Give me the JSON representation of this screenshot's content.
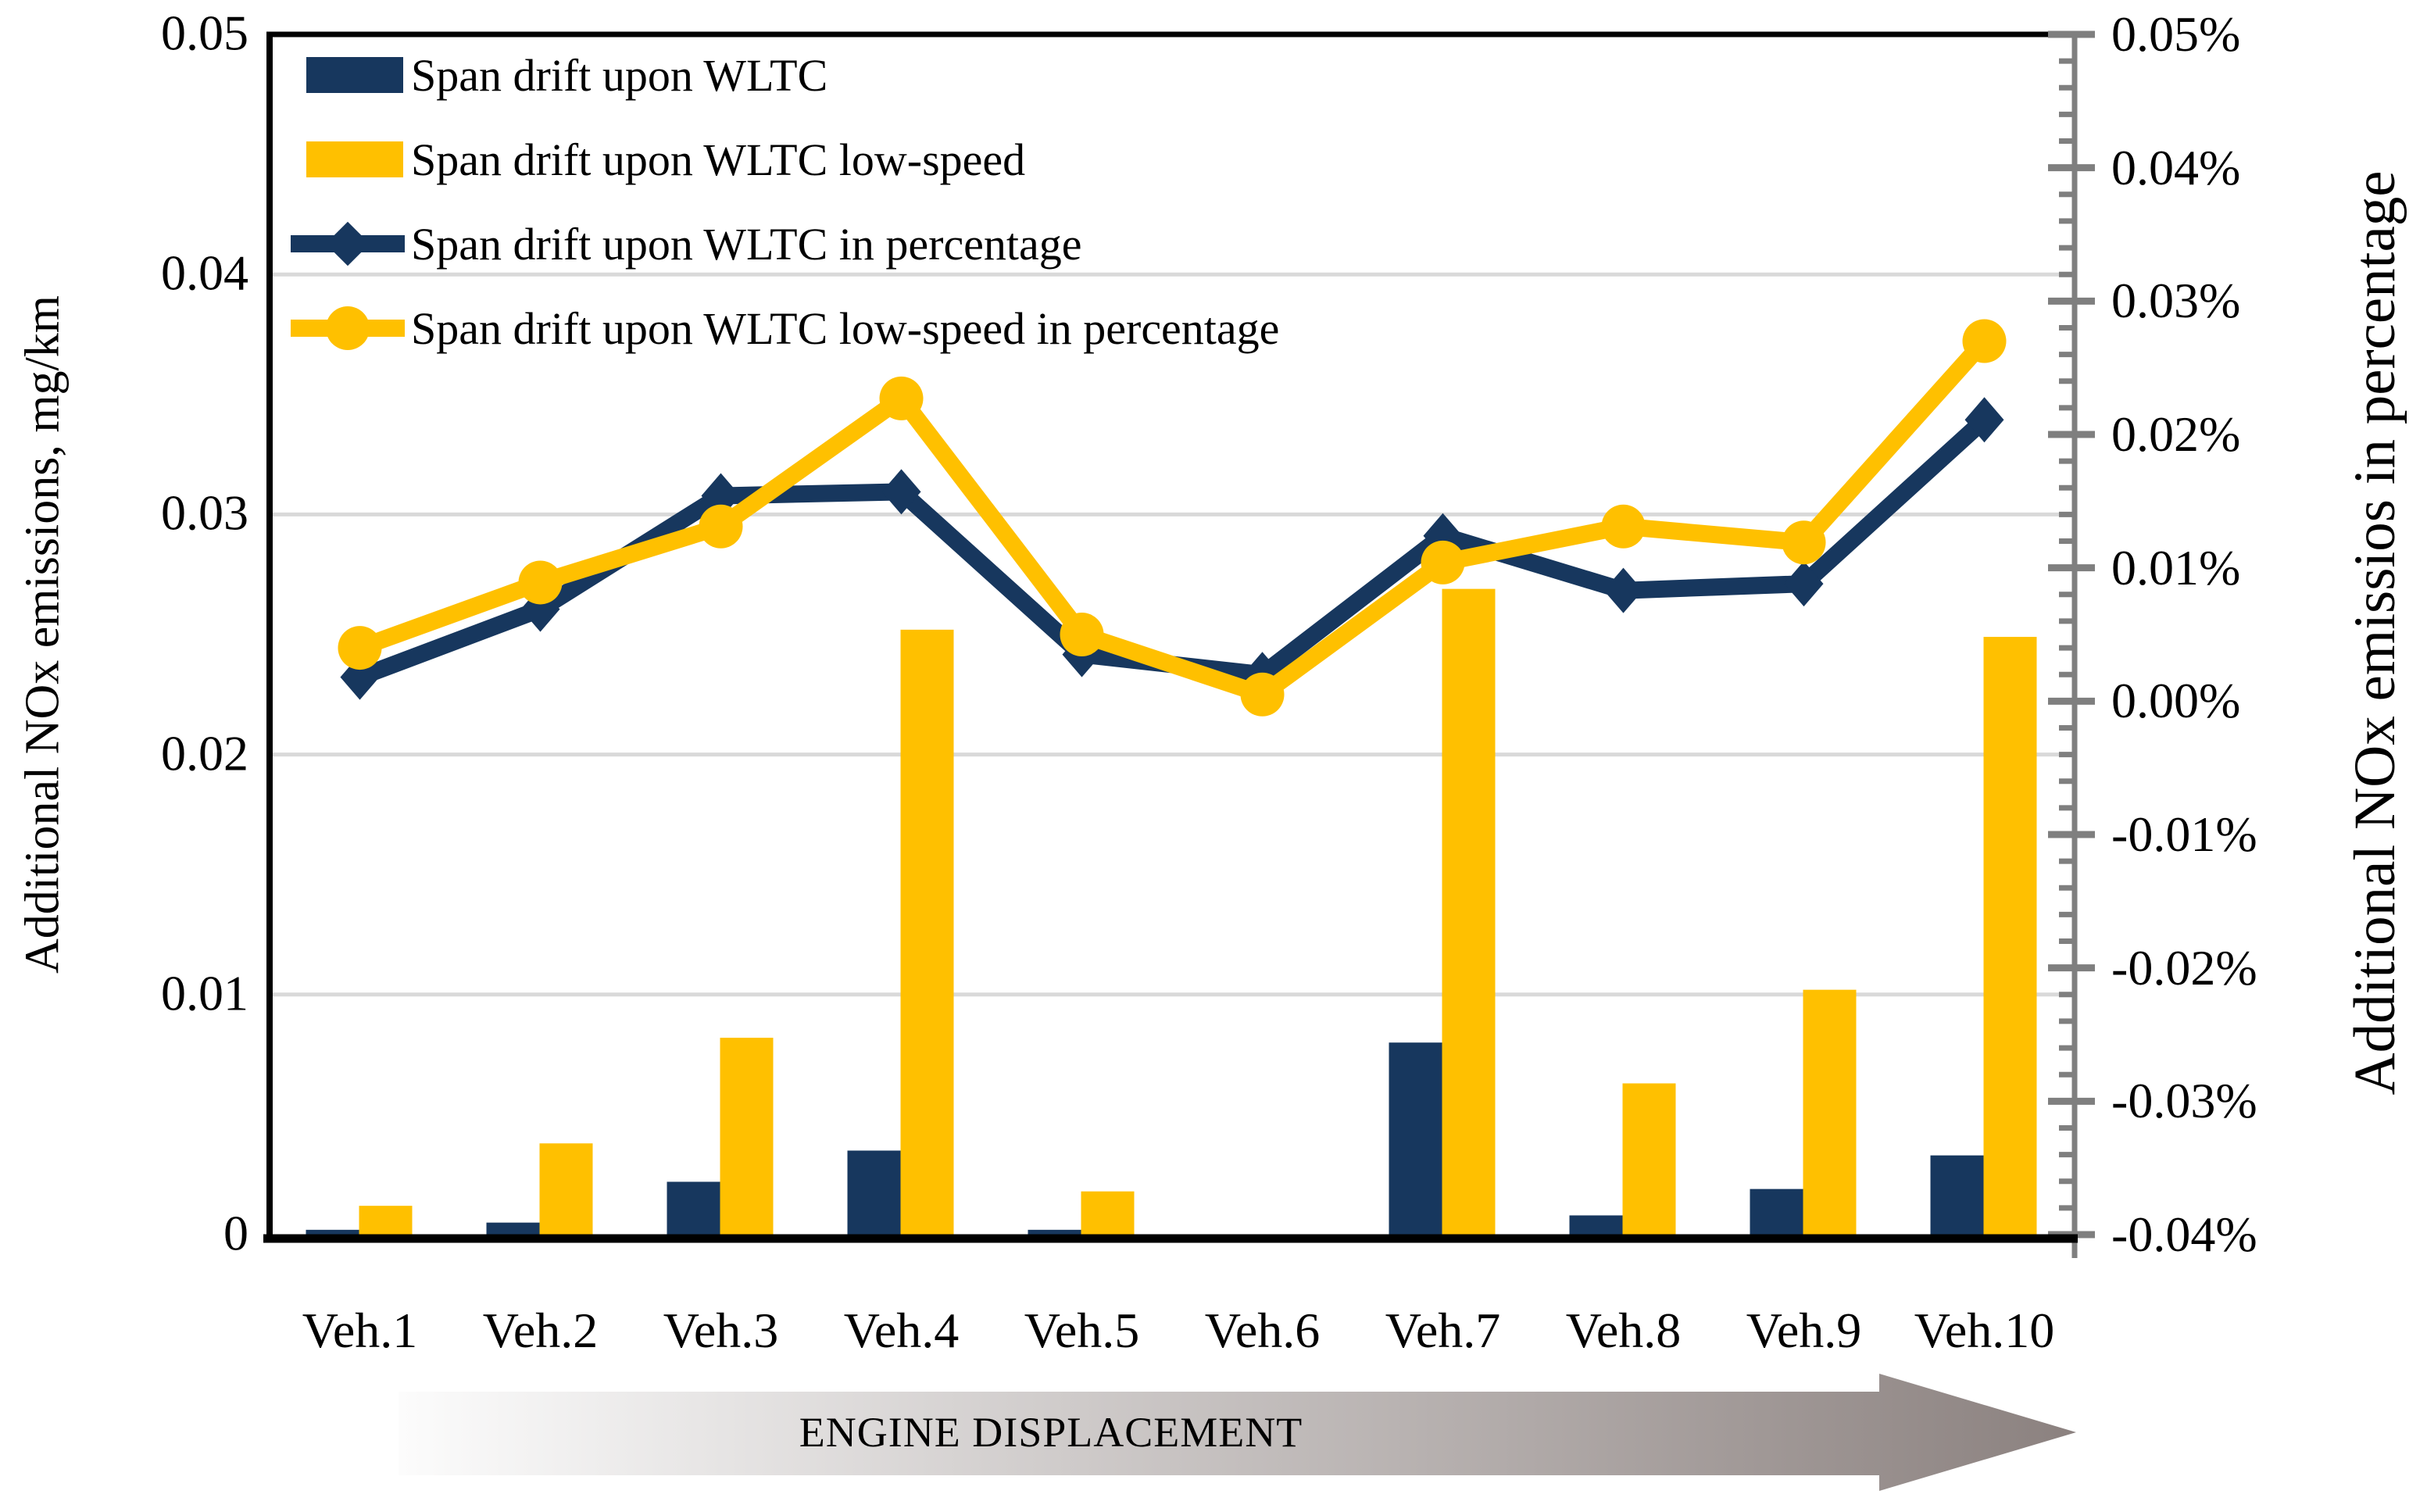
{
  "chart_data": {
    "type": "combo-bar-line",
    "title": "",
    "categories": [
      "Veh.1",
      "Veh.2",
      "Veh.3",
      "Veh.4",
      "Veh.5",
      "Veh.6",
      "Veh.7",
      "Veh.8",
      "Veh.9",
      "Veh.10"
    ],
    "series": [
      {
        "name": "Span drift upon WLTC",
        "type": "bar",
        "axis": "left",
        "color": "#17375e",
        "values": [
          0.0002,
          0.0005,
          0.0022,
          0.0035,
          0.0002,
          0,
          0.008,
          0.0008,
          0.0019,
          0.0033
        ]
      },
      {
        "name": "Span drift upon WLTC low-speed",
        "type": "bar",
        "axis": "left",
        "color": "#ffc000",
        "values": [
          0.0012,
          0.0038,
          0.0082,
          0.0252,
          0.0018,
          0,
          0.0269,
          0.0063,
          0.0102,
          0.0249
        ]
      },
      {
        "name": "Span drift upon WLTC in percentage",
        "type": "line",
        "marker": "diamond",
        "axis": "right",
        "color": "#17375e",
        "values": [
          0.0018,
          0.0069,
          0.0154,
          0.0157,
          0.0035,
          0.002,
          0.0124,
          0.0083,
          0.0088,
          0.0211
        ]
      },
      {
        "name": "Span drift upon WLTC low-speed in percentage",
        "type": "line",
        "marker": "circle",
        "axis": "right",
        "color": "#ffc000",
        "values": [
          0.004,
          0.0089,
          0.0131,
          0.0227,
          0.005,
          0.0005,
          0.0104,
          0.0131,
          0.0119,
          0.027
        ]
      }
    ],
    "left_axis": {
      "title": "Additional NOx emissions, mg/km",
      "min": 0,
      "max": 0.05,
      "ticks": [
        {
          "value": 0,
          "label": "0"
        },
        {
          "value": 0.01,
          "label": "0.01"
        },
        {
          "value": 0.02,
          "label": "0.02"
        },
        {
          "value": 0.03,
          "label": "0.03"
        },
        {
          "value": 0.04,
          "label": "0.04"
        },
        {
          "value": 0.05,
          "label": "0.05"
        }
      ]
    },
    "right_axis": {
      "title": "Additional NOx emissios in percentage",
      "min": -0.04,
      "max": 0.05,
      "minor_per_major": 5,
      "ticks": [
        {
          "value": 0.05,
          "label": "0.05%"
        },
        {
          "value": 0.04,
          "label": "0.04%"
        },
        {
          "value": 0.03,
          "label": "0.03%"
        },
        {
          "value": 0.02,
          "label": "0.02%"
        },
        {
          "value": 0.01,
          "label": "0.01%"
        },
        {
          "value": 0,
          "label": "0.00%"
        },
        {
          "value": -0.01,
          "label": "-0.01%"
        },
        {
          "value": -0.02,
          "label": "-0.02%"
        },
        {
          "value": -0.03,
          "label": "-0.03%"
        },
        {
          "value": -0.04,
          "label": "-0.04%"
        }
      ]
    },
    "footer_arrow": {
      "label": "ENGINE DISPLACEMENT"
    },
    "grid": "horizontal-on",
    "legend_position": "top-left-inside",
    "colors": {
      "blue": "#17375e",
      "yellow": "#ffc000",
      "gridline": "#d9d9d9",
      "right_axis_line": "#7f7f7f",
      "frame": "#000000",
      "arrow_gradient_start": "#fcfcfc",
      "arrow_gradient_end": "#8b817f"
    }
  }
}
